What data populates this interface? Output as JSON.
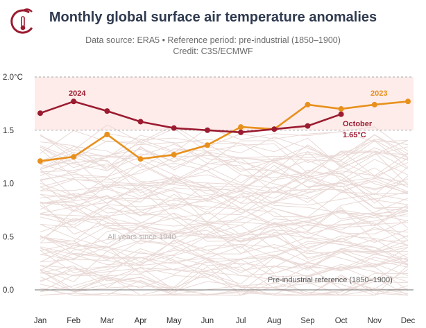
{
  "header": {
    "title": "Monthly global surface air temperature anomalies",
    "subtitle_line1": "Data source: ERA5 • Reference period: pre-industrial (1850–1900)",
    "subtitle_line2": "Credit: C3S/ECMWF"
  },
  "colors": {
    "series_2024": "#9b1b30",
    "series_2023": "#e8901c",
    "background_years": "#e9d9d6",
    "band_fill": "#fdecea",
    "logo": "#9b1b30"
  },
  "chart_data": {
    "type": "line",
    "categories": [
      "Jan",
      "Feb",
      "Mar",
      "Apr",
      "May",
      "Jun",
      "Jul",
      "Aug",
      "Sep",
      "Oct",
      "Nov",
      "Dec"
    ],
    "ylim": [
      0.0,
      2.0
    ],
    "yticks": [
      0.0,
      0.5,
      1.0,
      1.5,
      2.0
    ],
    "ytick_labels": [
      "0.0",
      "0.5",
      "1.0",
      "1.5",
      "2.0°C"
    ],
    "grid": "horizontal dashed at 1.5 and 2.0",
    "highlight_band": [
      1.5,
      2.0
    ],
    "series": [
      {
        "name": "2024",
        "values": [
          1.66,
          1.77,
          1.68,
          1.58,
          1.52,
          1.5,
          1.48,
          1.51,
          1.54,
          1.65,
          null,
          null
        ]
      },
      {
        "name": "2023",
        "values": [
          1.21,
          1.25,
          1.46,
          1.23,
          1.27,
          1.36,
          1.53,
          1.51,
          1.74,
          1.7,
          1.74,
          1.77
        ]
      }
    ],
    "background_series_label": "All years since 1940",
    "annotations": {
      "latest_month": "October",
      "latest_value": "1.65°C",
      "reference_label": "Pre-industrial reference (1850–1900)"
    }
  }
}
